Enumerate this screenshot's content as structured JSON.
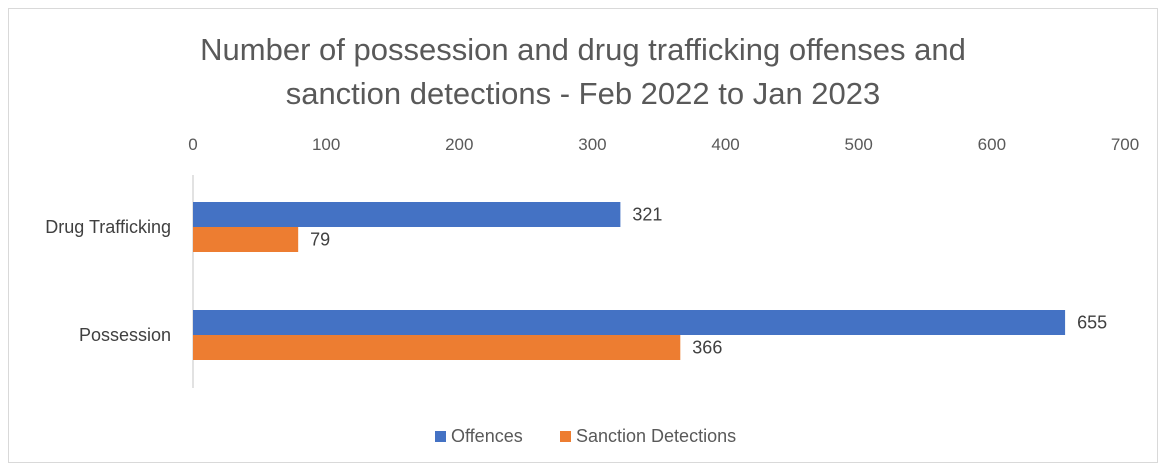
{
  "colors": {
    "offences": "#4472C4",
    "sanction": "#ED7D31",
    "axis": "#d9d9d9",
    "text": "#595959"
  },
  "chart_data": {
    "type": "bar",
    "orientation": "horizontal",
    "title": "Number of possession and drug trafficking offenses and sanction detections - Feb 2022 to Jan 2023",
    "title_lines": [
      "Number of possession and drug trafficking offenses and",
      "sanction detections - Feb 2022 to Jan 2023"
    ],
    "categories": [
      "Drug Trafficking",
      "Possession"
    ],
    "series": [
      {
        "name": "Offences",
        "values": [
          321,
          655
        ],
        "color": "#4472C4"
      },
      {
        "name": "Sanction Detections",
        "values": [
          79,
          366
        ],
        "color": "#ED7D31"
      }
    ],
    "xlim": [
      0,
      700
    ],
    "xticks": [
      0,
      100,
      200,
      300,
      400,
      500,
      600,
      700
    ],
    "x_axis_position": "top",
    "grid": false,
    "legend": "bottom"
  }
}
